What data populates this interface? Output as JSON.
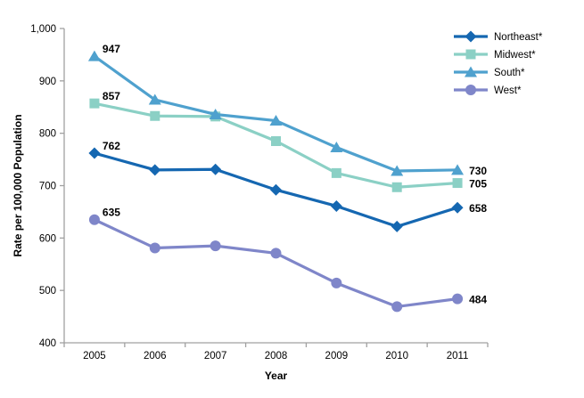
{
  "chart_data": {
    "type": "line",
    "title": "",
    "xlabel": "Year",
    "ylabel": "Rate per 100,000 Population",
    "categories": [
      "2005",
      "2006",
      "2007",
      "2008",
      "2009",
      "2010",
      "2011"
    ],
    "ylim": [
      400,
      1000
    ],
    "ytick_step": 100,
    "yticks": [
      "400",
      "500",
      "600",
      "700",
      "800",
      "900",
      "1,000"
    ],
    "grid": false,
    "legend_position": "top-right",
    "axis_color": "#a0a0a0",
    "text_color": "#000000",
    "series": [
      {
        "name": "Northeast*",
        "marker": "diamond",
        "color": "#1567b1",
        "values": [
          762,
          730,
          731,
          692,
          661,
          622,
          658
        ],
        "endpoint_labels": {
          "start": "762",
          "end": "658"
        }
      },
      {
        "name": "Midwest*",
        "marker": "square",
        "color": "#8bd0c5",
        "values": [
          857,
          833,
          832,
          785,
          724,
          697,
          705
        ],
        "endpoint_labels": {
          "start": "857",
          "end": "705"
        }
      },
      {
        "name": "South*",
        "marker": "triangle",
        "color": "#4fa1ce",
        "values": [
          947,
          864,
          836,
          824,
          773,
          728,
          730
        ],
        "endpoint_labels": {
          "start": "947",
          "end": "730"
        }
      },
      {
        "name": "West*",
        "marker": "circle",
        "color": "#7f86c9",
        "values": [
          635,
          581,
          585,
          571,
          514,
          469,
          484
        ],
        "endpoint_labels": {
          "start": "635",
          "end": "484"
        }
      }
    ]
  }
}
